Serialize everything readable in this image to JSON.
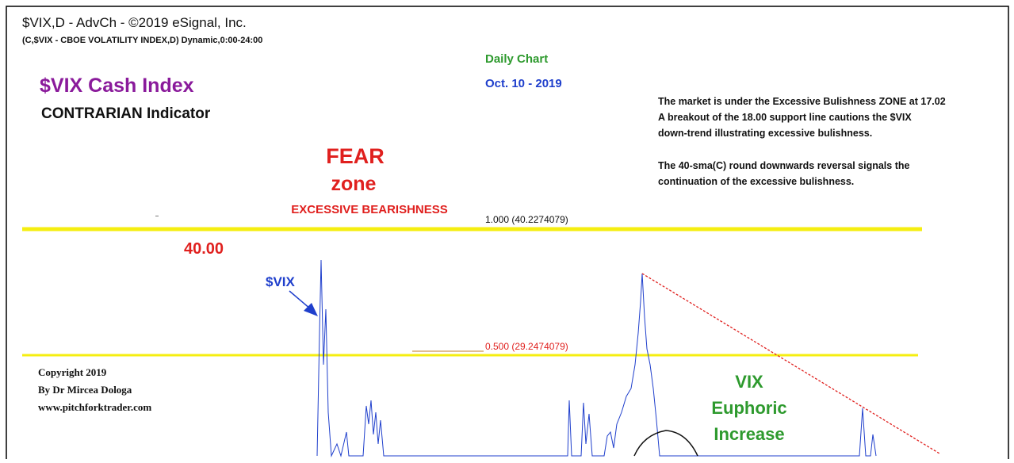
{
  "header": {
    "source": "$VIX,D - AdvCh - ©2019 eSignal, Inc.",
    "symbol_line": "(C,$VIX - CBOE VOLATILITY INDEX,D) Dynamic,0:00-24:00"
  },
  "title": {
    "main": "$VIX Cash Index",
    "sub": "CONTRARIAN Indicator"
  },
  "chart_info": {
    "period": "Daily Chart",
    "date": "Oct. 10 - 2019"
  },
  "commentary": {
    "lines": [
      "The market is under the Excessive Bulishness ZONE at 17.02",
      "A breakout of the 18.00 support line cautions the $VIX",
      "down-trend illustrating excessive bulishness.",
      "The 40-sma(C) round downwards reversal signals the",
      "continuation of the excessive bulishness."
    ]
  },
  "fear_zone": {
    "title": "FEAR",
    "sub": "zone",
    "note": "EXCESSIVE BEARISHNESS"
  },
  "levels": {
    "top": "1.000 (40.2274079)",
    "mid": "0.500 (29.2474079)",
    "price_label": "40.00"
  },
  "series_label": "$VIX",
  "copyright": [
    "Copyright 2019",
    "By Dr Mircea Dologa",
    "www.pitchforktrader.com"
  ],
  "euphoric": [
    "VIX",
    "Euphoric",
    "Increase"
  ]
}
